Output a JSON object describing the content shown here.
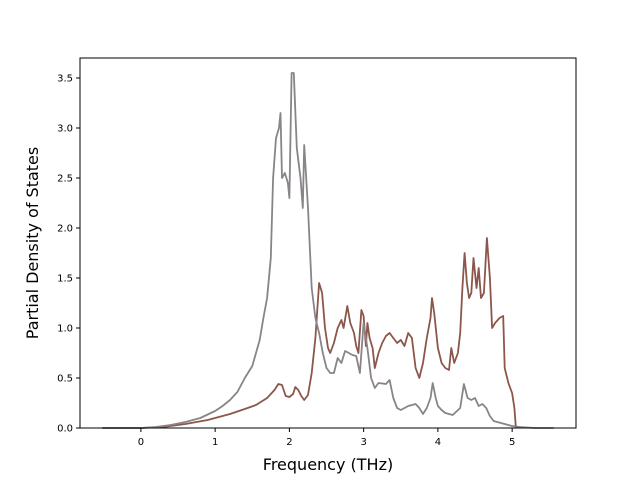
{
  "chart_data": {
    "type": "line",
    "title": "",
    "xlabel": "Frequency (THz)",
    "ylabel": "Partial Density of States",
    "xlim": [
      -0.82,
      5.86
    ],
    "ylim": [
      0.0,
      3.7
    ],
    "xticks": [
      0,
      1,
      2,
      3,
      4,
      5
    ],
    "yticks": [
      0.0,
      0.5,
      1.0,
      1.5,
      2.0,
      2.5,
      3.0,
      3.5
    ],
    "ytick_labels": [
      "0.0",
      "0.5",
      "1.0",
      "1.5",
      "2.0",
      "2.5",
      "3.0",
      "3.5"
    ],
    "grid": false,
    "legend": "none",
    "series": [
      {
        "color": "#8c564b",
        "points": [
          [
            -0.52,
            0.0
          ],
          [
            0.0,
            0.0
          ],
          [
            0.3,
            0.01
          ],
          [
            0.6,
            0.04
          ],
          [
            0.9,
            0.08
          ],
          [
            1.2,
            0.14
          ],
          [
            1.4,
            0.19
          ],
          [
            1.55,
            0.23
          ],
          [
            1.7,
            0.3
          ],
          [
            1.8,
            0.38
          ],
          [
            1.85,
            0.44
          ],
          [
            1.9,
            0.43
          ],
          [
            1.95,
            0.32
          ],
          [
            2.0,
            0.31
          ],
          [
            2.05,
            0.34
          ],
          [
            2.08,
            0.41
          ],
          [
            2.12,
            0.38
          ],
          [
            2.16,
            0.32
          ],
          [
            2.2,
            0.28
          ],
          [
            2.25,
            0.33
          ],
          [
            2.3,
            0.55
          ],
          [
            2.35,
            0.9
          ],
          [
            2.4,
            1.45
          ],
          [
            2.44,
            1.35
          ],
          [
            2.48,
            1.0
          ],
          [
            2.52,
            0.8
          ],
          [
            2.55,
            0.75
          ],
          [
            2.6,
            0.85
          ],
          [
            2.65,
            1.0
          ],
          [
            2.7,
            1.08
          ],
          [
            2.73,
            1.0
          ],
          [
            2.78,
            1.22
          ],
          [
            2.82,
            1.05
          ],
          [
            2.87,
            0.95
          ],
          [
            2.9,
            0.82
          ],
          [
            2.93,
            0.75
          ],
          [
            2.97,
            1.18
          ],
          [
            3.0,
            1.12
          ],
          [
            3.03,
            0.82
          ],
          [
            3.05,
            1.05
          ],
          [
            3.08,
            0.9
          ],
          [
            3.12,
            0.8
          ],
          [
            3.15,
            0.6
          ],
          [
            3.2,
            0.75
          ],
          [
            3.25,
            0.85
          ],
          [
            3.3,
            0.92
          ],
          [
            3.35,
            0.95
          ],
          [
            3.4,
            0.9
          ],
          [
            3.45,
            0.85
          ],
          [
            3.5,
            0.88
          ],
          [
            3.55,
            0.82
          ],
          [
            3.6,
            0.95
          ],
          [
            3.65,
            0.9
          ],
          [
            3.7,
            0.6
          ],
          [
            3.75,
            0.5
          ],
          [
            3.8,
            0.65
          ],
          [
            3.85,
            0.9
          ],
          [
            3.9,
            1.1
          ],
          [
            3.92,
            1.3
          ],
          [
            3.95,
            1.15
          ],
          [
            4.0,
            0.8
          ],
          [
            4.05,
            0.65
          ],
          [
            4.1,
            0.6
          ],
          [
            4.15,
            0.58
          ],
          [
            4.18,
            0.8
          ],
          [
            4.22,
            0.65
          ],
          [
            4.27,
            0.75
          ],
          [
            4.3,
            0.95
          ],
          [
            4.33,
            1.4
          ],
          [
            4.36,
            1.75
          ],
          [
            4.39,
            1.45
          ],
          [
            4.42,
            1.3
          ],
          [
            4.45,
            1.35
          ],
          [
            4.48,
            1.7
          ],
          [
            4.52,
            1.4
          ],
          [
            4.55,
            1.6
          ],
          [
            4.58,
            1.3
          ],
          [
            4.62,
            1.35
          ],
          [
            4.66,
            1.9
          ],
          [
            4.7,
            1.5
          ],
          [
            4.73,
            1.0
          ],
          [
            4.77,
            1.05
          ],
          [
            4.83,
            1.1
          ],
          [
            4.88,
            1.12
          ],
          [
            4.9,
            0.6
          ],
          [
            4.95,
            0.45
          ],
          [
            5.0,
            0.35
          ],
          [
            5.03,
            0.2
          ],
          [
            5.05,
            0.0
          ]
        ]
      },
      {
        "color": "#888489",
        "points": [
          [
            -0.52,
            0.0
          ],
          [
            0.0,
            0.0
          ],
          [
            0.2,
            0.01
          ],
          [
            0.4,
            0.03
          ],
          [
            0.6,
            0.06
          ],
          [
            0.8,
            0.1
          ],
          [
            1.0,
            0.17
          ],
          [
            1.1,
            0.22
          ],
          [
            1.2,
            0.28
          ],
          [
            1.3,
            0.36
          ],
          [
            1.4,
            0.5
          ],
          [
            1.5,
            0.62
          ],
          [
            1.55,
            0.75
          ],
          [
            1.6,
            0.88
          ],
          [
            1.65,
            1.1
          ],
          [
            1.7,
            1.3
          ],
          [
            1.75,
            1.7
          ],
          [
            1.78,
            2.5
          ],
          [
            1.82,
            2.9
          ],
          [
            1.86,
            3.0
          ],
          [
            1.88,
            3.15
          ],
          [
            1.9,
            2.5
          ],
          [
            1.94,
            2.55
          ],
          [
            1.98,
            2.45
          ],
          [
            2.0,
            2.3
          ],
          [
            2.03,
            3.55
          ],
          [
            2.06,
            3.55
          ],
          [
            2.1,
            2.8
          ],
          [
            2.15,
            2.5
          ],
          [
            2.18,
            2.2
          ],
          [
            2.2,
            2.83
          ],
          [
            2.25,
            2.2
          ],
          [
            2.3,
            1.4
          ],
          [
            2.35,
            1.1
          ],
          [
            2.4,
            0.95
          ],
          [
            2.45,
            0.75
          ],
          [
            2.5,
            0.6
          ],
          [
            2.55,
            0.55
          ],
          [
            2.6,
            0.55
          ],
          [
            2.65,
            0.7
          ],
          [
            2.7,
            0.65
          ],
          [
            2.75,
            0.77
          ],
          [
            2.8,
            0.75
          ],
          [
            2.85,
            0.73
          ],
          [
            2.9,
            0.72
          ],
          [
            2.95,
            0.55
          ],
          [
            3.0,
            1.05
          ],
          [
            3.05,
            0.8
          ],
          [
            3.1,
            0.5
          ],
          [
            3.15,
            0.4
          ],
          [
            3.2,
            0.45
          ],
          [
            3.3,
            0.44
          ],
          [
            3.35,
            0.48
          ],
          [
            3.4,
            0.3
          ],
          [
            3.45,
            0.2
          ],
          [
            3.5,
            0.18
          ],
          [
            3.6,
            0.22
          ],
          [
            3.7,
            0.24
          ],
          [
            3.75,
            0.2
          ],
          [
            3.8,
            0.14
          ],
          [
            3.85,
            0.2
          ],
          [
            3.9,
            0.3
          ],
          [
            3.93,
            0.45
          ],
          [
            3.97,
            0.3
          ],
          [
            4.0,
            0.22
          ],
          [
            4.05,
            0.18
          ],
          [
            4.1,
            0.15
          ],
          [
            4.2,
            0.13
          ],
          [
            4.3,
            0.2
          ],
          [
            4.35,
            0.44
          ],
          [
            4.4,
            0.3
          ],
          [
            4.45,
            0.28
          ],
          [
            4.5,
            0.3
          ],
          [
            4.55,
            0.22
          ],
          [
            4.6,
            0.24
          ],
          [
            4.65,
            0.2
          ],
          [
            4.7,
            0.12
          ],
          [
            4.75,
            0.07
          ],
          [
            4.8,
            0.06
          ],
          [
            4.9,
            0.04
          ],
          [
            5.0,
            0.02
          ],
          [
            5.1,
            0.01
          ],
          [
            5.3,
            0.0
          ],
          [
            5.56,
            0.0
          ]
        ]
      }
    ]
  }
}
